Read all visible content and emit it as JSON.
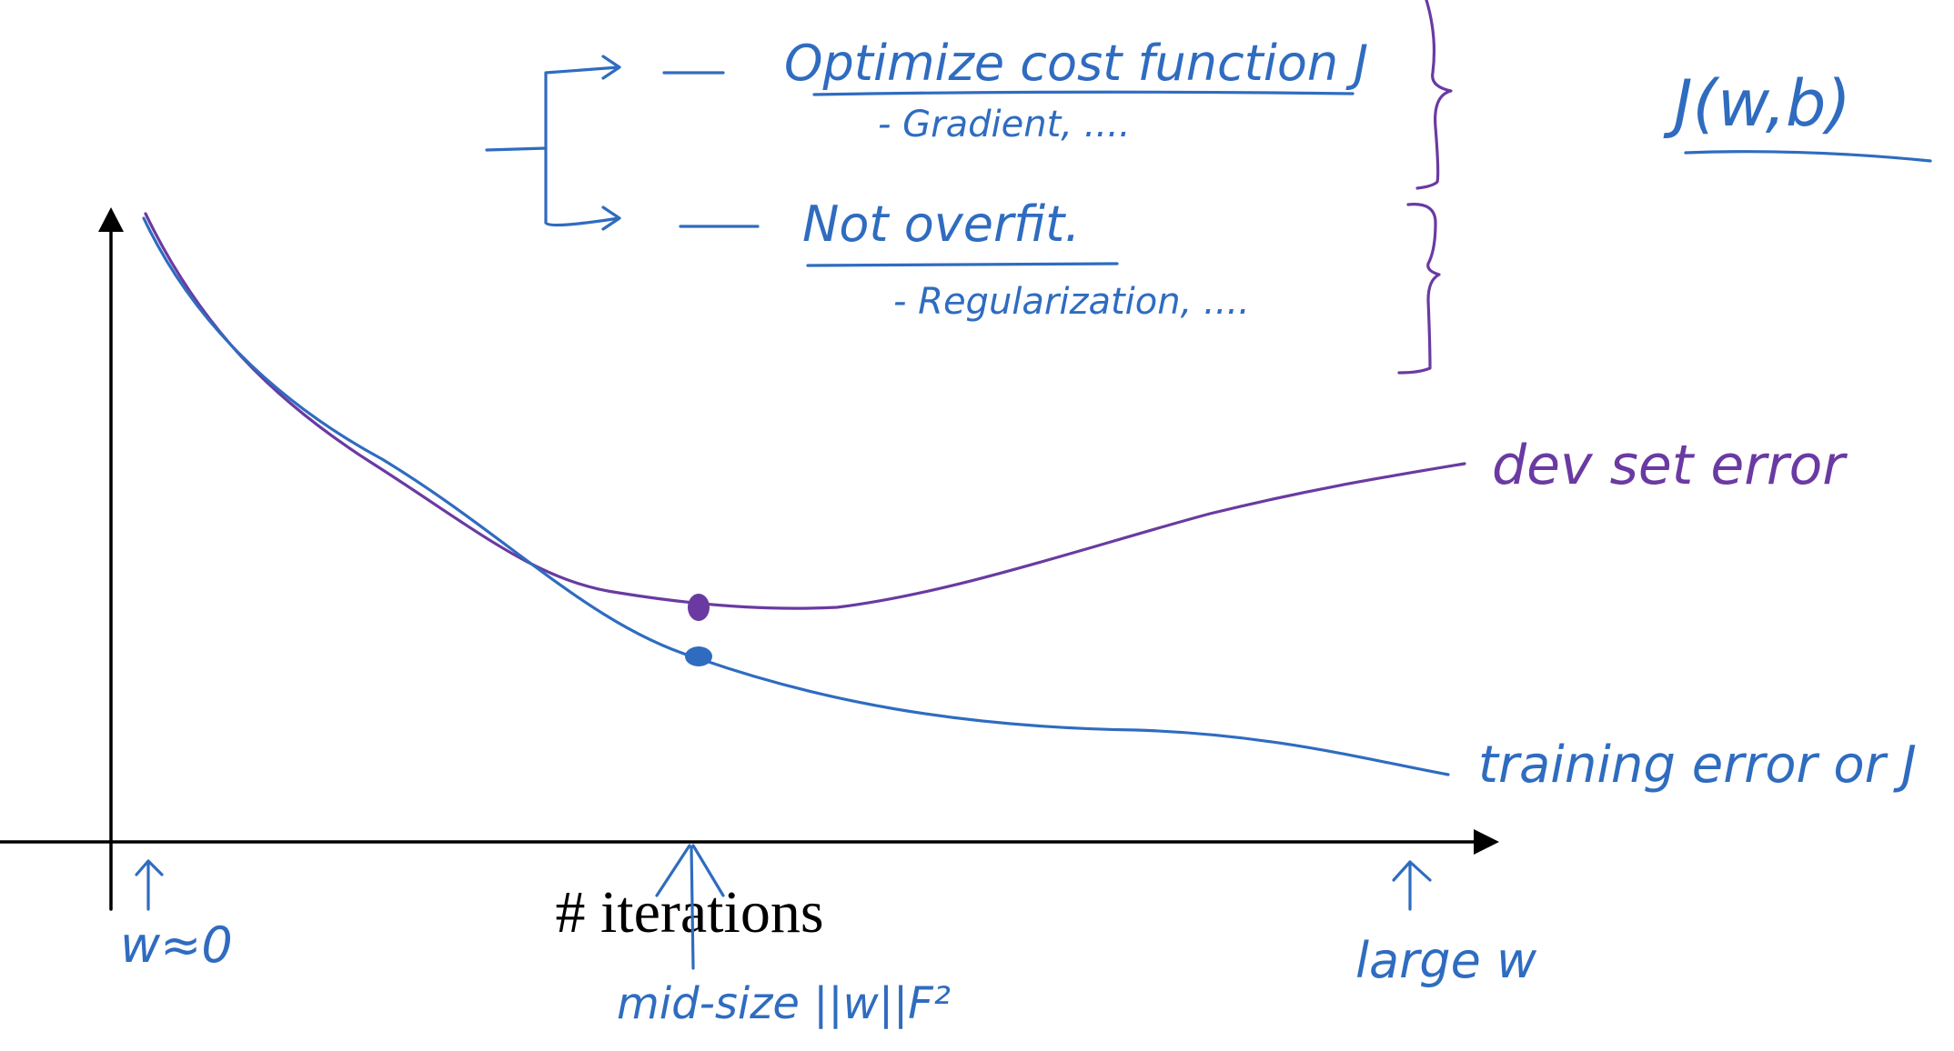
{
  "notes": {
    "item1_title": "Optimize cost function J",
    "item1_detail": "- Gradient, ....",
    "item2_title": "Not overfit.",
    "item2_detail": "- Regularization, ....",
    "cost_label": "J(w,b)"
  },
  "chart_data": {
    "type": "line",
    "xlabel": "# iterations",
    "ylabel": "",
    "series": [
      {
        "name": "dev set error",
        "color": "#6a3aa2"
      },
      {
        "name": "training error or J",
        "color": "#2f6cc0"
      }
    ],
    "annotations": {
      "start": "w≈0",
      "middle": "mid-size ||w||F²",
      "end": "large w"
    }
  },
  "colors": {
    "blue_ink": "#2f6cc0",
    "purple_ink": "#6a3aa2",
    "axis": "#000000"
  }
}
